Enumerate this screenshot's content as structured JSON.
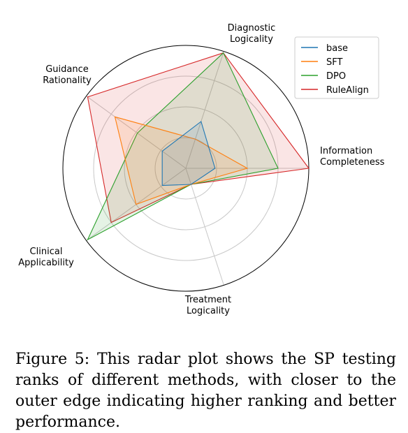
{
  "chart_data": {
    "type": "radar",
    "axes": [
      "Diagnostic\nLogicality",
      "Information\nCompleteness",
      "Treatment\nLogicality",
      "Clinical\nApplicability",
      "Guidance\nRationality"
    ],
    "rmax": 4,
    "grid": true,
    "legend_position": "top-right",
    "series": [
      {
        "name": "base",
        "color": "#1f77b4",
        "values": [
          1.6,
          0.95,
          0.55,
          0.95,
          0.95
        ]
      },
      {
        "name": "SFT",
        "color": "#ff7f0e",
        "values": [
          1.0,
          2.0,
          0.55,
          2.0,
          2.85
        ]
      },
      {
        "name": "DPO",
        "color": "#2ca02c",
        "values": [
          3.95,
          3.0,
          0.55,
          3.95,
          1.95
        ]
      },
      {
        "name": "RuleAlign",
        "color": "#d62728",
        "values": [
          3.95,
          4.0,
          0.55,
          3.0,
          3.95
        ]
      }
    ]
  },
  "caption": "Figure 5: This radar plot shows the SP testing ranks of different methods, with closer to the outer edge indicating higher ranking and better performance."
}
